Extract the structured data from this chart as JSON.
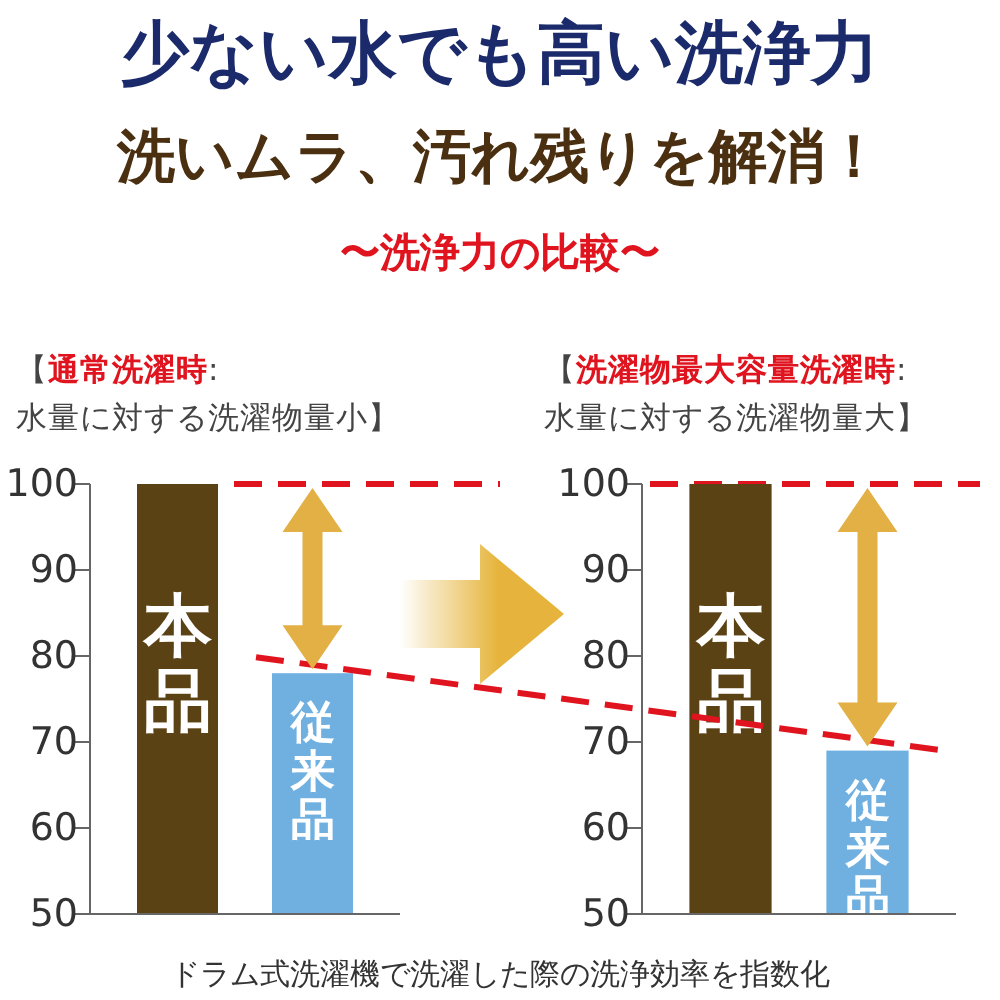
{
  "chart_data": [
    {
      "type": "bar",
      "title": "【通常洗濯時: 水量に対する洗濯物量小】",
      "categories": [
        "本品",
        "従来品"
      ],
      "colors": [
        "#5a4214",
        "#6fb0e0"
      ],
      "values": [
        100,
        78
      ],
      "ylim": [
        50,
        100
      ],
      "yticks": [
        50,
        60,
        70,
        80,
        90,
        100
      ],
      "ref_lines": [
        {
          "axis": "y",
          "value": 100,
          "color": "#e0141e",
          "line_style": "dashed"
        }
      ],
      "annotations": [
        "少ない水でも高い洗浄力",
        "洗いムラ、汚れ残りを解消！",
        "〜洗浄力の比較〜",
        "ドラム式洗濯機で洗濯した際の洗浄効率を指数化"
      ]
    },
    {
      "type": "bar",
      "title": "【洗濯物最大容量洗濯時: 水量に対する洗濯物量大】",
      "categories": [
        "本品",
        "従来品"
      ],
      "colors": [
        "#5a4214",
        "#6fb0e0"
      ],
      "values": [
        100,
        69
      ],
      "ylim": [
        50,
        100
      ],
      "yticks": [
        50,
        60,
        70,
        80,
        90,
        100
      ],
      "ref_lines": [
        {
          "axis": "y",
          "value": 100,
          "color": "#e0141e",
          "line_style": "dashed"
        }
      ]
    }
  ]
}
